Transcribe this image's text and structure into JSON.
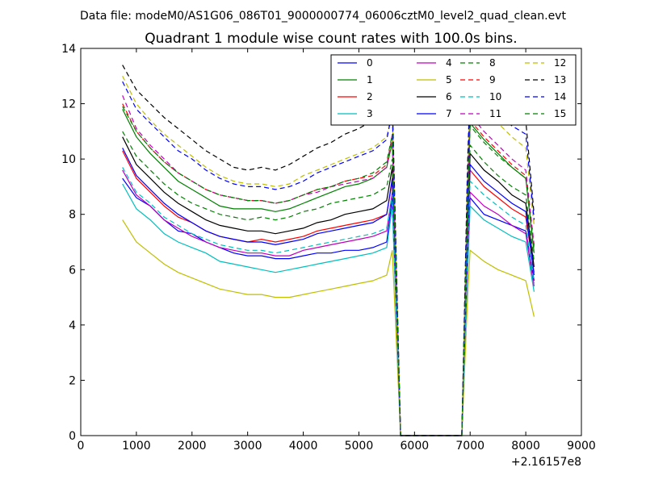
{
  "chart_data": {
    "type": "line",
    "suptitle": "Data file: modeM0/AS1G06_086T01_9000000774_06006cztM0_level2_quad_clean.evt",
    "title": "Quadrant 1 module wise count rates with 100.0s bins.",
    "xlabel": "",
    "ylabel": "",
    "x_offset_label": "+2.16157e8",
    "xlim": [
      0,
      9000
    ],
    "ylim": [
      0,
      14
    ],
    "xticks": [
      0,
      1000,
      2000,
      3000,
      4000,
      5000,
      6000,
      7000,
      8000,
      9000
    ],
    "yticks": [
      0,
      2,
      4,
      6,
      8,
      10,
      12,
      14
    ],
    "xtick_labels": [
      "0",
      "1000",
      "2000",
      "3000",
      "4000",
      "5000",
      "6000",
      "7000",
      "8000",
      "9000"
    ],
    "ytick_labels": [
      "0",
      "2",
      "4",
      "6",
      "8",
      "10",
      "12",
      "14"
    ],
    "legend_position": "top-right",
    "x": [
      750,
      1000,
      1250,
      1500,
      1750,
      2000,
      2250,
      2500,
      2750,
      3000,
      3250,
      3500,
      3750,
      4000,
      4250,
      4500,
      4750,
      5000,
      5250,
      5500,
      5600,
      5750,
      6000,
      6500,
      6850,
      6950,
      7000,
      7250,
      7500,
      7750,
      8000,
      8150
    ],
    "series": [
      {
        "name": "0",
        "color": "#0000ff",
        "dash": "solid",
        "values": [
          9.3,
          8.6,
          8.3,
          7.8,
          7.4,
          7.3,
          7.0,
          6.8,
          6.6,
          6.5,
          6.5,
          6.4,
          6.4,
          6.5,
          6.6,
          6.6,
          6.7,
          6.7,
          6.8,
          7.0,
          8.6,
          0,
          0,
          0,
          0,
          6.0,
          8.6,
          8.0,
          7.8,
          7.6,
          7.4,
          5.6
        ]
      },
      {
        "name": "1",
        "color": "#008000",
        "dash": "solid",
        "values": [
          11.8,
          10.8,
          10.2,
          9.7,
          9.2,
          8.9,
          8.6,
          8.3,
          8.2,
          8.2,
          8.2,
          8.1,
          8.2,
          8.4,
          8.6,
          8.8,
          9.0,
          9.1,
          9.3,
          9.7,
          10.6,
          0,
          0,
          0,
          0,
          8.0,
          11.3,
          10.7,
          10.2,
          9.7,
          9.3,
          6.6
        ]
      },
      {
        "name": "2",
        "color": "#ff0000",
        "dash": "solid",
        "values": [
          10.3,
          9.3,
          8.8,
          8.3,
          7.9,
          7.7,
          7.4,
          7.2,
          7.1,
          7.0,
          7.1,
          7.0,
          7.1,
          7.2,
          7.4,
          7.5,
          7.6,
          7.7,
          7.8,
          8.0,
          9.2,
          0,
          0,
          0,
          0,
          6.6,
          9.6,
          9.0,
          8.6,
          8.2,
          7.9,
          5.9
        ]
      },
      {
        "name": "3",
        "color": "#00bfbf",
        "dash": "solid",
        "values": [
          9.1,
          8.2,
          7.8,
          7.3,
          7.0,
          6.8,
          6.6,
          6.3,
          6.2,
          6.1,
          6.0,
          5.9,
          6.0,
          6.1,
          6.2,
          6.3,
          6.4,
          6.5,
          6.6,
          6.8,
          8.3,
          0,
          0,
          0,
          0,
          5.7,
          8.3,
          7.8,
          7.5,
          7.2,
          7.0,
          5.2
        ]
      },
      {
        "name": "4",
        "color": "#bf00bf",
        "dash": "solid",
        "values": [
          9.6,
          8.7,
          8.3,
          7.8,
          7.5,
          7.2,
          7.0,
          6.8,
          6.7,
          6.6,
          6.6,
          6.5,
          6.5,
          6.7,
          6.8,
          6.9,
          7.0,
          7.1,
          7.2,
          7.4,
          8.8,
          0,
          0,
          0,
          0,
          6.1,
          8.8,
          8.3,
          8.0,
          7.6,
          7.3,
          5.4
        ]
      },
      {
        "name": "5",
        "color": "#bfbf00",
        "dash": "solid",
        "values": [
          7.8,
          7.0,
          6.6,
          6.2,
          5.9,
          5.7,
          5.5,
          5.3,
          5.2,
          5.1,
          5.1,
          5.0,
          5.0,
          5.1,
          5.2,
          5.3,
          5.4,
          5.5,
          5.6,
          5.8,
          6.7,
          0,
          0,
          0,
          0,
          4.8,
          6.7,
          6.3,
          6.0,
          5.8,
          5.6,
          4.3
        ]
      },
      {
        "name": "6",
        "color": "#000000",
        "dash": "solid",
        "values": [
          10.8,
          9.8,
          9.3,
          8.8,
          8.4,
          8.1,
          7.8,
          7.6,
          7.5,
          7.4,
          7.4,
          7.3,
          7.4,
          7.5,
          7.7,
          7.8,
          8.0,
          8.1,
          8.2,
          8.5,
          9.7,
          0,
          0,
          0,
          0,
          7.2,
          10.2,
          9.6,
          9.2,
          8.7,
          8.4,
          6.1
        ]
      },
      {
        "name": "7",
        "color": "#0000ff",
        "dash": "solid",
        "values": [
          10.4,
          9.4,
          8.9,
          8.4,
          8.0,
          7.7,
          7.4,
          7.2,
          7.1,
          7.0,
          7.0,
          6.9,
          7.0,
          7.1,
          7.3,
          7.4,
          7.5,
          7.6,
          7.7,
          8.0,
          9.3,
          0,
          0,
          0,
          0,
          6.8,
          9.8,
          9.2,
          8.8,
          8.4,
          8.1,
          5.8
        ]
      },
      {
        "name": "8",
        "color": "#008000",
        "dash": "dashed",
        "values": [
          11.0,
          10.1,
          9.6,
          9.1,
          8.7,
          8.4,
          8.2,
          8.0,
          7.9,
          7.8,
          7.9,
          7.8,
          7.9,
          8.1,
          8.2,
          8.4,
          8.5,
          8.6,
          8.7,
          9.0,
          10.0,
          0,
          0,
          0,
          0,
          7.5,
          10.5,
          9.9,
          9.4,
          9.0,
          8.7,
          6.3
        ]
      },
      {
        "name": "9",
        "color": "#ff0000",
        "dash": "dashed",
        "values": [
          12.0,
          11.0,
          10.4,
          9.9,
          9.5,
          9.2,
          8.9,
          8.7,
          8.6,
          8.5,
          8.5,
          8.4,
          8.5,
          8.7,
          8.9,
          9.0,
          9.2,
          9.3,
          9.4,
          9.8,
          10.8,
          0,
          0,
          0,
          0,
          8.2,
          11.4,
          10.8,
          10.3,
          9.8,
          9.4,
          6.8
        ]
      },
      {
        "name": "10",
        "color": "#00bfbf",
        "dash": "dashed",
        "values": [
          9.7,
          8.8,
          8.4,
          7.9,
          7.6,
          7.3,
          7.1,
          6.9,
          6.8,
          6.7,
          6.7,
          6.6,
          6.7,
          6.8,
          6.9,
          7.0,
          7.1,
          7.2,
          7.3,
          7.5,
          8.7,
          0,
          0,
          0,
          0,
          6.3,
          9.2,
          8.7,
          8.3,
          7.9,
          7.6,
          5.5
        ]
      },
      {
        "name": "11",
        "color": "#bf00bf",
        "dash": "dashed",
        "values": [
          12.3,
          11.1,
          10.5,
          10.0,
          9.5,
          9.2,
          8.9,
          8.7,
          8.6,
          8.5,
          8.5,
          8.4,
          8.5,
          8.7,
          8.8,
          9.0,
          9.1,
          9.2,
          9.3,
          9.7,
          10.9,
          0,
          0,
          0,
          0,
          8.3,
          11.6,
          11.0,
          10.5,
          10.0,
          9.6,
          6.9
        ]
      },
      {
        "name": "12",
        "color": "#bfbf00",
        "dash": "dashed",
        "values": [
          13.0,
          12.0,
          11.4,
          10.9,
          10.5,
          10.1,
          9.7,
          9.4,
          9.2,
          9.1,
          9.1,
          9.0,
          9.1,
          9.4,
          9.6,
          9.8,
          10.0,
          10.2,
          10.4,
          10.8,
          11.8,
          0,
          0,
          0,
          0,
          9.0,
          12.3,
          11.8,
          11.3,
          10.8,
          10.4,
          7.6
        ]
      },
      {
        "name": "13",
        "color": "#000000",
        "dash": "dashed",
        "values": [
          13.4,
          12.5,
          12.0,
          11.5,
          11.1,
          10.7,
          10.3,
          10.0,
          9.7,
          9.6,
          9.7,
          9.6,
          9.8,
          10.1,
          10.4,
          10.6,
          10.9,
          11.1,
          11.4,
          11.8,
          12.2,
          0,
          0,
          0,
          0,
          9.6,
          12.8,
          12.4,
          12.0,
          11.7,
          11.4,
          8.0
        ]
      },
      {
        "name": "14",
        "color": "#0000ff",
        "dash": "dashed",
        "values": [
          12.8,
          11.8,
          11.3,
          10.8,
          10.3,
          10.0,
          9.6,
          9.3,
          9.1,
          9.0,
          9.0,
          8.9,
          9.0,
          9.2,
          9.5,
          9.7,
          9.9,
          10.1,
          10.3,
          10.7,
          11.7,
          0,
          0,
          0,
          0,
          9.0,
          12.5,
          12.0,
          11.6,
          11.2,
          10.9,
          7.8
        ]
      },
      {
        "name": "15",
        "color": "#008000",
        "dash": "dashed",
        "values": [
          11.9,
          11.0,
          10.4,
          9.9,
          9.5,
          9.2,
          8.9,
          8.7,
          8.6,
          8.5,
          8.5,
          8.4,
          8.5,
          8.7,
          8.9,
          9.0,
          9.2,
          9.3,
          9.5,
          9.9,
          10.9,
          0,
          0,
          0,
          0,
          8.1,
          11.2,
          10.6,
          10.1,
          9.7,
          9.3,
          6.7
        ]
      }
    ]
  }
}
